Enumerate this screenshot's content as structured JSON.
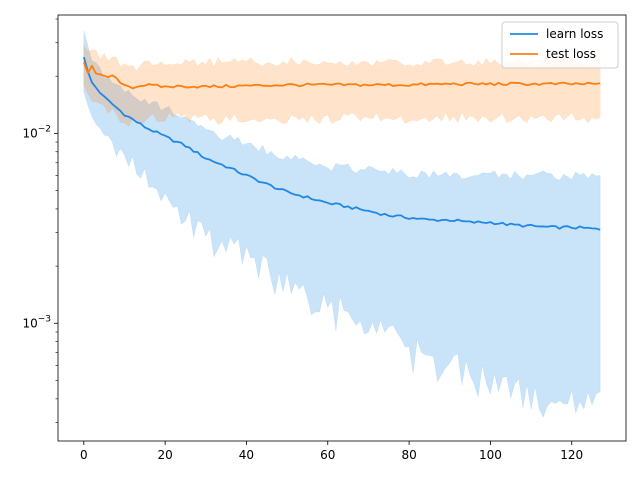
{
  "chart_data": {
    "type": "line",
    "title": "",
    "xlabel": "",
    "ylabel": "",
    "x_scale": "linear",
    "y_scale": "log",
    "xlim": [
      -6.35,
      133.35
    ],
    "ylim": [
      0.00024,
      0.042
    ],
    "x_ticks": [
      0,
      20,
      40,
      60,
      80,
      100,
      120
    ],
    "x_tick_labels": [
      "0",
      "20",
      "40",
      "60",
      "80",
      "100",
      "120"
    ],
    "y_major_ticks": [
      0.001,
      0.01
    ],
    "y_tick_labels": [
      {
        "base": "10",
        "exp": "−3"
      },
      {
        "base": "10",
        "exp": "−2"
      }
    ],
    "y_minor_ticks": [
      0.0003,
      0.0004,
      0.0005,
      0.0006,
      0.0007,
      0.0008,
      0.0009,
      0.002,
      0.003,
      0.004,
      0.005,
      0.006,
      0.007,
      0.008,
      0.009,
      0.02,
      0.03,
      0.04
    ],
    "grid": false,
    "legend": {
      "position": "upper right"
    },
    "x_data_range": [
      0,
      127
    ],
    "series": [
      {
        "name": "learn loss",
        "color": "#1f88e5",
        "band_color": "#1f88e5",
        "band_opacity": 0.24,
        "knots": {
          "x": [
            0,
            1,
            2,
            5,
            10,
            15,
            20,
            25,
            30,
            35,
            40,
            45,
            50,
            55,
            60,
            65,
            70,
            75,
            80,
            85,
            90,
            95,
            100,
            105,
            110,
            115,
            120,
            125,
            127
          ],
          "mean": [
            0.0255,
            0.021,
            0.0185,
            0.0155,
            0.0126,
            0.0108,
            0.0096,
            0.0086,
            0.0074,
            0.0067,
            0.006,
            0.0054,
            0.0049,
            0.0046,
            0.0043,
            0.0041,
            0.0039,
            0.0037,
            0.0036,
            0.0035,
            0.0035,
            0.0034,
            0.0034,
            0.0033,
            0.00325,
            0.0032,
            0.0032,
            0.00315,
            0.0031
          ],
          "upper": [
            0.036,
            0.03,
            0.025,
            0.02,
            0.017,
            0.015,
            0.0135,
            0.0118,
            0.0105,
            0.0095,
            0.0088,
            0.0081,
            0.0075,
            0.007,
            0.0067,
            0.0066,
            0.0064,
            0.0063,
            0.0062,
            0.0061,
            0.0061,
            0.006,
            0.006,
            0.006,
            0.006,
            0.006,
            0.006,
            0.006,
            0.0058
          ],
          "lower": [
            0.017,
            0.014,
            0.012,
            0.0095,
            0.0075,
            0.0058,
            0.0045,
            0.0037,
            0.003,
            0.0025,
            0.0021,
            0.0018,
            0.0015,
            0.0013,
            0.0012,
            0.00105,
            0.00095,
            0.00082,
            0.0007,
            0.00062,
            0.00058,
            0.00052,
            0.00048,
            0.00044,
            0.0004,
            0.0004,
            0.00039,
            0.0004,
            0.00038
          ]
        }
      },
      {
        "name": "test loss",
        "color": "#ff7f0e",
        "band_color": "#ff7f0e",
        "band_opacity": 0.22,
        "knots": {
          "x": [
            0,
            1,
            2,
            3,
            5,
            7,
            10,
            12,
            15,
            20,
            25,
            30,
            40,
            50,
            60,
            70,
            80,
            90,
            100,
            110,
            120,
            127
          ],
          "mean": [
            0.024,
            0.021,
            0.023,
            0.0205,
            0.0198,
            0.02,
            0.018,
            0.0175,
            0.018,
            0.0176,
            0.0177,
            0.0176,
            0.0178,
            0.018,
            0.018,
            0.018,
            0.018,
            0.0182,
            0.0182,
            0.0182,
            0.0182,
            0.0182
          ],
          "upper": [
            0.028,
            0.026,
            0.028,
            0.026,
            0.025,
            0.0245,
            0.023,
            0.0225,
            0.0228,
            0.0232,
            0.0234,
            0.0236,
            0.0238,
            0.0238,
            0.0238,
            0.0238,
            0.0238,
            0.0239,
            0.0239,
            0.0239,
            0.0239,
            0.024
          ],
          "lower": [
            0.018,
            0.0165,
            0.0155,
            0.014,
            0.0135,
            0.013,
            0.0118,
            0.0115,
            0.0118,
            0.012,
            0.012,
            0.0118,
            0.012,
            0.012,
            0.012,
            0.012,
            0.012,
            0.0121,
            0.0121,
            0.0121,
            0.012,
            0.0119
          ]
        }
      }
    ]
  }
}
